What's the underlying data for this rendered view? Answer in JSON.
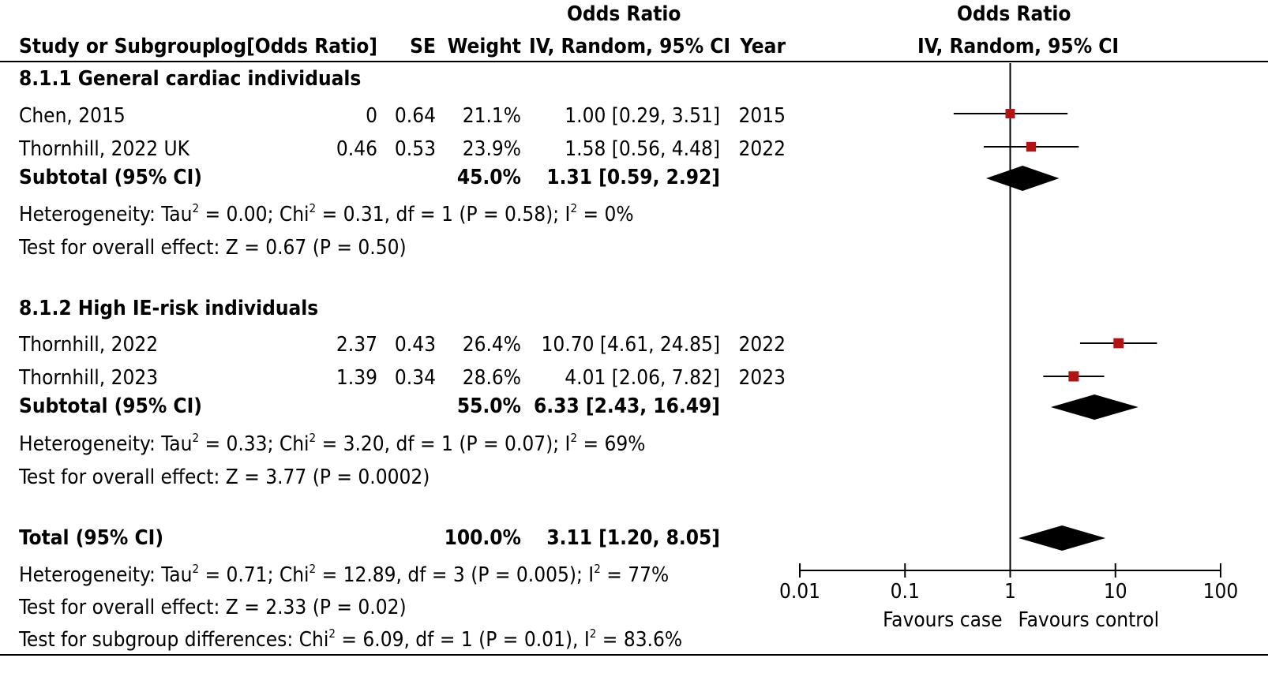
{
  "header": {
    "group1": "Odds Ratio",
    "group2": "Odds Ratio",
    "col_study": "Study or Subgroup",
    "col_logor": "log[Odds Ratio]",
    "col_se": "SE",
    "col_weight": "Weight",
    "col_ci": "IV, Random, 95% CI",
    "col_year": "Year",
    "col_plot": "IV, Random, 95% CI"
  },
  "subgroups": [
    {
      "title": "8.1.1 General cardiac individuals",
      "studies": [
        {
          "name": "Chen, 2015",
          "logor": "0",
          "se": "0.64",
          "weight": "21.1%",
          "ci": "1.00 [0.29, 3.51]",
          "year": "2015"
        },
        {
          "name": "Thornhill, 2022 UK",
          "logor": "0.46",
          "se": "0.53",
          "weight": "23.9%",
          "ci": "1.58 [0.56, 4.48]",
          "year": "2022"
        }
      ],
      "subtotal": {
        "label": "Subtotal (95% CI)",
        "weight": "45.0%",
        "ci": "1.31 [0.59, 2.92]"
      },
      "het": {
        "a": "Heterogeneity: Tau",
        "b": " = 0.00; Chi",
        "c": " = 0.31, df = 1 (P = 0.58); I",
        "d": " = 0%"
      },
      "test": "Test for overall effect: Z = 0.67 (P = 0.50)"
    },
    {
      "title": "8.1.2 High IE-risk individuals",
      "studies": [
        {
          "name": "Thornhill, 2022",
          "logor": "2.37",
          "se": "0.43",
          "weight": "26.4%",
          "ci": "10.70 [4.61, 24.85]",
          "year": "2022"
        },
        {
          "name": "Thornhill, 2023",
          "logor": "1.39",
          "se": "0.34",
          "weight": "28.6%",
          "ci": "4.01 [2.06, 7.82]",
          "year": "2023"
        }
      ],
      "subtotal": {
        "label": "Subtotal (95% CI)",
        "weight": "55.0%",
        "ci": "6.33 [2.43, 16.49]"
      },
      "het": {
        "a": "Heterogeneity: Tau",
        "b": " = 0.33; Chi",
        "c": " = 3.20, df = 1 (P = 0.07); I",
        "d": " = 69%"
      },
      "test": "Test for overall effect: Z = 3.77 (P = 0.0002)"
    }
  ],
  "total": {
    "label": "Total (95% CI)",
    "weight": "100.0%",
    "ci": "3.11 [1.20, 8.05]",
    "het": {
      "a": "Heterogeneity: Tau",
      "b": " = 0.71; Chi",
      "c": " = 12.89, df = 3 (P = 0.005); I",
      "d": " = 77%"
    },
    "test": "Test for overall effect: Z = 2.33 (P = 0.02)",
    "subgroup": {
      "a": "Test for subgroup differences: Chi",
      "b": " = 6.09, df = 1 (P = 0.01), I",
      "c": " = 83.6%"
    }
  },
  "sup2": "2",
  "chart_data": {
    "type": "forest",
    "scale": "log",
    "xlim": [
      0.01,
      100
    ],
    "ticks": [
      {
        "value": 0.01,
        "label": "0.01"
      },
      {
        "value": 0.1,
        "label": "0.1"
      },
      {
        "value": 1,
        "label": "1"
      },
      {
        "value": 10,
        "label": "10"
      },
      {
        "value": 100,
        "label": "100"
      }
    ],
    "reference_line": 1,
    "favours_left": "Favours case",
    "favours_right": "Favours control",
    "studies": [
      {
        "name": "Chen, 2015",
        "or": 1.0,
        "lower": 0.29,
        "upper": 3.51,
        "weight": 21.1
      },
      {
        "name": "Thornhill, 2022 UK",
        "or": 1.58,
        "lower": 0.56,
        "upper": 4.48,
        "weight": 23.9
      },
      {
        "name": "Thornhill, 2022",
        "or": 10.7,
        "lower": 4.61,
        "upper": 24.85,
        "weight": 26.4
      },
      {
        "name": "Thornhill, 2023",
        "or": 4.01,
        "lower": 2.06,
        "upper": 7.82,
        "weight": 28.6
      }
    ],
    "pooled": [
      {
        "name": "Subtotal 8.1.1",
        "or": 1.31,
        "lower": 0.59,
        "upper": 2.92
      },
      {
        "name": "Subtotal 8.1.2",
        "or": 6.33,
        "lower": 2.43,
        "upper": 16.49
      },
      {
        "name": "Total",
        "or": 3.11,
        "lower": 1.2,
        "upper": 8.05
      }
    ],
    "colors": {
      "square": "#b01414",
      "diamond": "#000000",
      "line": "#000000"
    }
  }
}
